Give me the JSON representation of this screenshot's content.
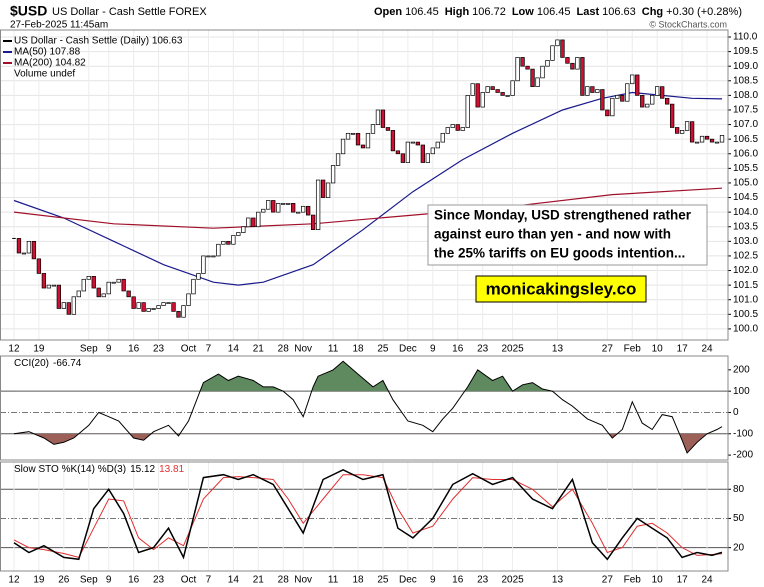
{
  "header": {
    "symbol": "$USD",
    "name": "US Dollar - Cash Settle FOREX",
    "date": "27-Feb-2025 11:45am",
    "quote": [
      [
        "Open",
        "106.45"
      ],
      [
        "High",
        "106.72"
      ],
      [
        "Low",
        "106.45"
      ],
      [
        "Last",
        "106.63"
      ],
      [
        "Chg",
        "+0.30 (+0.28%)"
      ]
    ],
    "copyright": "© StockCharts.com"
  },
  "annotation": {
    "lines": [
      "Since Monday, USD strengthened rather",
      "against euro than yen - and now with",
      "the 25% tariffs on EU goods intention..."
    ],
    "watermark": "monicakingsley.co"
  },
  "chart_data": [
    {
      "type": "candlestick",
      "xlim": [
        -2.8,
        143.2
      ],
      "ylim": [
        99.62,
        110.24
      ],
      "grid": true,
      "extra_legend": "Volume undef",
      "xticks": [
        {
          "value": 0,
          "label": "12"
        },
        {
          "value": 5,
          "label": "19"
        },
        {
          "value": 15,
          "label": "Sep"
        },
        {
          "value": 19,
          "label": "9"
        },
        {
          "value": 24,
          "label": "16"
        },
        {
          "value": 29,
          "label": "23"
        },
        {
          "value": 35,
          "label": "Oct"
        },
        {
          "value": 39,
          "label": "7"
        },
        {
          "value": 44,
          "label": "14"
        },
        {
          "value": 49,
          "label": "21"
        },
        {
          "value": 54,
          "label": "28"
        },
        {
          "value": 58,
          "label": "Nov"
        },
        {
          "value": 64,
          "label": "11"
        },
        {
          "value": 69,
          "label": "18"
        },
        {
          "value": 74,
          "label": "25"
        },
        {
          "value": 79,
          "label": "Dec"
        },
        {
          "value": 84,
          "label": "9"
        },
        {
          "value": 89,
          "label": "16"
        },
        {
          "value": 94,
          "label": "23"
        },
        {
          "value": 100,
          "label": "2025"
        },
        {
          "value": 109,
          "label": "13"
        },
        {
          "value": 119,
          "label": "27"
        },
        {
          "value": 124,
          "label": "Feb"
        },
        {
          "value": 129,
          "label": "10"
        },
        {
          "value": 134,
          "label": "17"
        },
        {
          "value": 139,
          "label": "24"
        }
      ],
      "yticks": [
        {
          "value": 100,
          "label": "100.0"
        },
        {
          "value": 100.5,
          "label": "100.5"
        },
        {
          "value": 101,
          "label": "101.0"
        },
        {
          "value": 101.5,
          "label": "101.5"
        },
        {
          "value": 102,
          "label": "102.0"
        },
        {
          "value": 102.5,
          "label": "102.5"
        },
        {
          "value": 103,
          "label": "103.0"
        },
        {
          "value": 103.5,
          "label": "103.5"
        },
        {
          "value": 104,
          "label": "104.0"
        },
        {
          "value": 104.5,
          "label": "104.5"
        },
        {
          "value": 105,
          "label": "105.0"
        },
        {
          "value": 105.5,
          "label": "105.5"
        },
        {
          "value": 106,
          "label": "106.0"
        },
        {
          "value": 106.5,
          "label": "106.5"
        },
        {
          "value": 107,
          "label": "107.0"
        },
        {
          "value": 107.5,
          "label": "107.5"
        },
        {
          "value": 108,
          "label": "108.0"
        },
        {
          "value": 108.5,
          "label": "108.5"
        },
        {
          "value": 109,
          "label": "109.0"
        },
        {
          "value": 109.5,
          "label": "109.5"
        },
        {
          "value": 110,
          "label": "110.0"
        }
      ],
      "series": [
        {
          "name": "US Dollar - Cash Settle (Daily) 106.63",
          "color": "#000000",
          "up_color": "#ffffff",
          "down_color": "#cc1133",
          "values": [
            103.1,
            102.6,
            102.6,
            103.0,
            102.4,
            101.9,
            101.4,
            101.5,
            101.5,
            100.7,
            100.9,
            100.5,
            101.1,
            101.3,
            101.7,
            101.8,
            101.4,
            101.1,
            101.2,
            101.6,
            101.6,
            101.7,
            101.3,
            101.1,
            100.7,
            100.9,
            100.6,
            100.7,
            100.7,
            100.8,
            100.9,
            100.9,
            100.6,
            100.4,
            100.8,
            101.2,
            101.7,
            101.9,
            102.5,
            102.5,
            102.5,
            102.9,
            103.0,
            102.9,
            103.2,
            103.3,
            103.5,
            103.8,
            103.5,
            104.0,
            104.1,
            104.4,
            104.0,
            104.3,
            104.3,
            104.3,
            104.0,
            104.0,
            104.2,
            103.9,
            103.4,
            105.1,
            104.5,
            105.0,
            105.6,
            106.0,
            106.5,
            106.7,
            106.7,
            106.3,
            106.2,
            106.7,
            107.0,
            107.5,
            106.9,
            106.8,
            106.1,
            106.0,
            105.7,
            106.4,
            106.4,
            106.3,
            105.7,
            106.0,
            106.2,
            106.4,
            106.7,
            106.9,
            107.0,
            106.8,
            106.9,
            108.0,
            108.4,
            107.6,
            108.1,
            108.3,
            108.2,
            108.1,
            108.0,
            108.0,
            108.5,
            109.3,
            109.0,
            108.9,
            108.3,
            108.6,
            109.0,
            109.2,
            109.7,
            109.9,
            109.3,
            109.1,
            108.9,
            109.3,
            108.0,
            108.3,
            108.1,
            108.2,
            107.5,
            107.3,
            107.9,
            108.0,
            107.8,
            108.4,
            108.7,
            108.0,
            107.6,
            107.7,
            108.0,
            108.3,
            107.9,
            107.7,
            106.9,
            106.7,
            106.8,
            107.1,
            106.4,
            106.4,
            106.6,
            106.5,
            106.4,
            106.4,
            106.63
          ]
        },
        {
          "name": "MA(50) 107.88",
          "color": "#1a1a8c",
          "x": [
            0,
            10,
            20,
            30,
            40,
            45,
            50,
            60,
            70,
            80,
            90,
            100,
            110,
            118,
            124,
            130,
            136,
            142
          ],
          "values": [
            104.4,
            103.8,
            103.0,
            102.2,
            101.6,
            101.5,
            101.6,
            102.2,
            103.4,
            104.7,
            105.8,
            106.7,
            107.5,
            107.9,
            108.1,
            108.0,
            107.9,
            107.88
          ]
        },
        {
          "name": "MA(200) 104.82",
          "color": "#a0102a",
          "x": [
            0,
            20,
            40,
            60,
            80,
            100,
            120,
            142
          ],
          "values": [
            104.0,
            103.6,
            103.45,
            103.6,
            103.9,
            104.2,
            104.6,
            104.82
          ]
        }
      ]
    },
    {
      "type": "cci",
      "title": "CCI(20)",
      "last": -66.74,
      "xlim": [
        -2.8,
        143.2
      ],
      "ylim": [
        -223,
        265
      ],
      "yticks": [
        -200,
        -100,
        0,
        100,
        200
      ],
      "bands": [
        -100,
        100
      ],
      "color": "#000000",
      "upper_fill": "#5f8a5f",
      "lower_fill": "#9c6058",
      "x": [
        0,
        3,
        6,
        8,
        10,
        12,
        15,
        17,
        19,
        21,
        24,
        26,
        28,
        31,
        33,
        35,
        38,
        41,
        43,
        45,
        48,
        50,
        52,
        54,
        56,
        58,
        60,
        61,
        64,
        66,
        69,
        72,
        74,
        76,
        79,
        82,
        84,
        86,
        88,
        91,
        93,
        96,
        98,
        100,
        102,
        104,
        106,
        108,
        110,
        112,
        115,
        118,
        119,
        120,
        122,
        124,
        126,
        128,
        130,
        132,
        134,
        135,
        137,
        139,
        141,
        142
      ],
      "values": [
        -100,
        -90,
        -120,
        -150,
        -140,
        -120,
        -60,
        0,
        -20,
        -40,
        -120,
        -130,
        -90,
        -60,
        -110,
        -40,
        140,
        180,
        150,
        170,
        150,
        120,
        120,
        100,
        60,
        -20,
        120,
        170,
        200,
        240,
        180,
        120,
        150,
        60,
        -40,
        -60,
        -90,
        -30,
        20,
        120,
        200,
        150,
        170,
        100,
        130,
        140,
        110,
        100,
        60,
        30,
        -30,
        -60,
        -90,
        -120,
        -80,
        50,
        -50,
        -80,
        -10,
        -20,
        -130,
        -190,
        -140,
        -100,
        -80,
        -66.74
      ]
    },
    {
      "type": "stochastic",
      "title": "Slow STO %K(14) %D(3)",
      "xlim": [
        -2.8,
        143.2
      ],
      "ylim": [
        -4,
        108
      ],
      "yticks": [
        20,
        50,
        80
      ],
      "bands": [
        20,
        80
      ],
      "xticks": [
        {
          "value": 0,
          "label": "12"
        },
        {
          "value": 5,
          "label": "19"
        },
        {
          "value": 10,
          "label": "26"
        },
        {
          "value": 15,
          "label": "Sep"
        },
        {
          "value": 19,
          "label": "9"
        },
        {
          "value": 24,
          "label": "16"
        },
        {
          "value": 29,
          "label": "23"
        },
        {
          "value": 35,
          "label": "Oct"
        },
        {
          "value": 39,
          "label": "7"
        },
        {
          "value": 44,
          "label": "14"
        },
        {
          "value": 49,
          "label": "21"
        },
        {
          "value": 54,
          "label": "28"
        },
        {
          "value": 58,
          "label": "Nov"
        },
        {
          "value": 64,
          "label": "11"
        },
        {
          "value": 69,
          "label": "18"
        },
        {
          "value": 74,
          "label": "25"
        },
        {
          "value": 79,
          "label": "Dec"
        },
        {
          "value": 84,
          "label": "9"
        },
        {
          "value": 89,
          "label": "16"
        },
        {
          "value": 94,
          "label": "23"
        },
        {
          "value": 100,
          "label": "2025"
        },
        {
          "value": 109,
          "label": "13"
        },
        {
          "value": 119,
          "label": "27"
        },
        {
          "value": 124,
          "label": "Feb"
        },
        {
          "value": 129,
          "label": "10"
        },
        {
          "value": 134,
          "label": "17"
        },
        {
          "value": 139,
          "label": "24"
        }
      ],
      "series": [
        {
          "color": "#000000",
          "last": 15.12,
          "x": [
            0,
            3,
            6,
            10,
            13,
            16,
            19,
            22,
            25,
            28,
            31,
            34,
            38,
            42,
            45,
            48,
            52,
            55,
            58,
            62,
            66,
            70,
            74,
            77,
            80,
            84,
            88,
            92,
            96,
            100,
            104,
            108,
            112,
            116,
            119,
            122,
            125,
            128,
            131,
            134,
            137,
            140,
            142
          ],
          "values": [
            25,
            15,
            22,
            10,
            8,
            60,
            80,
            55,
            15,
            20,
            40,
            10,
            92,
            95,
            90,
            95,
            85,
            60,
            35,
            90,
            100,
            90,
            95,
            40,
            30,
            50,
            85,
            96,
            85,
            92,
            70,
            60,
            90,
            25,
            8,
            30,
            50,
            40,
            30,
            10,
            15,
            12,
            15.12
          ]
        },
        {
          "color": "#e03030",
          "last": 13.81,
          "x": [
            0,
            3,
            6,
            10,
            13,
            16,
            19,
            22,
            25,
            28,
            31,
            34,
            38,
            42,
            45,
            48,
            52,
            55,
            58,
            62,
            66,
            70,
            74,
            77,
            80,
            84,
            88,
            92,
            96,
            100,
            104,
            108,
            112,
            116,
            119,
            122,
            125,
            128,
            131,
            134,
            137,
            140,
            142
          ],
          "values": [
            28,
            20,
            18,
            14,
            10,
            40,
            70,
            68,
            30,
            18,
            30,
            22,
            70,
            92,
            93,
            92,
            90,
            70,
            45,
            70,
            95,
            95,
            92,
            60,
            35,
            42,
            70,
            92,
            90,
            90,
            80,
            62,
            80,
            45,
            15,
            20,
            42,
            45,
            35,
            20,
            12,
            13,
            13.81
          ]
        }
      ]
    }
  ]
}
